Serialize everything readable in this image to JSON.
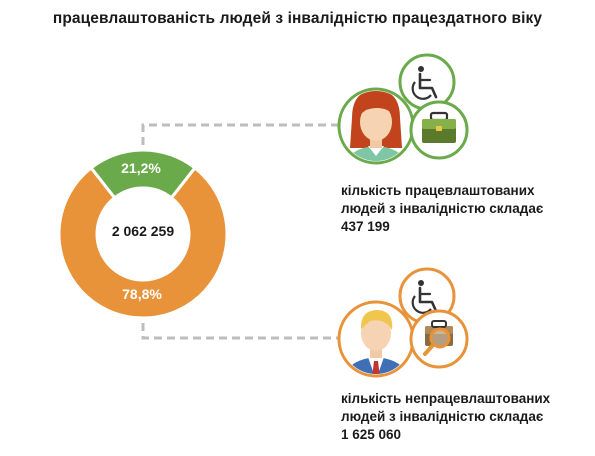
{
  "title": "працевлаштованість людей з інвалідністю працездатного віку",
  "colors": {
    "employed": "#6aaa4b",
    "unemployed": "#e8933a",
    "connector": "#bdbdbd"
  },
  "icons": {
    "employed": [
      "woman-avatar-icon",
      "wheelchair-icon",
      "briefcase-icon"
    ],
    "unemployed": [
      "man-avatar-icon",
      "wheelchair-icon",
      "briefcase-search-icon"
    ]
  },
  "captions": {
    "employed": {
      "line1": "кількість працевлаштованих",
      "line2": "людей з інвалідністю складає",
      "value": "437 199"
    },
    "unemployed": {
      "line1": "кількість  непрацевлаштованих",
      "line2": "людей з інвалідністю складає",
      "value": "1 625 060"
    }
  },
  "chart_data": {
    "type": "pie",
    "center_label": "2 062 259",
    "total": 2062259,
    "slices": [
      {
        "label": "21,2%",
        "value": 437199,
        "percent": 21.2,
        "color": "#6aaa4b"
      },
      {
        "label": "78,8%",
        "value": 1625060,
        "percent": 78.8,
        "color": "#e8933a"
      }
    ]
  }
}
